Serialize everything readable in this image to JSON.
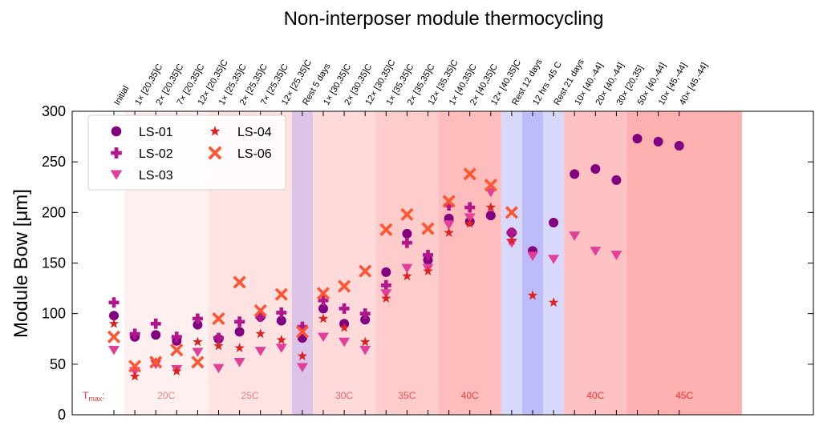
{
  "chart_data": {
    "type": "scatter",
    "title": "Non-interposer module thermocycling",
    "xlabel": "",
    "ylabel": "Module Bow [μm]",
    "ylim": [
      0,
      300
    ],
    "yticks": [
      0,
      50,
      100,
      150,
      200,
      250,
      300
    ],
    "categories": [
      "Initial",
      "1× [20,35]C",
      "2× [20,35]C",
      "7× [20,35]C",
      "12× [20,35]C",
      "1× [25,35]C",
      "2× [25,35]C",
      "7× [25,35]C",
      "12× [25,35]C",
      "Rest 5 days",
      "1× [30,35]C",
      "2× [30,35]C",
      "12× [30,35]C",
      "1× [35,35]C",
      "2× [35,35]C",
      "12× [35,35]C",
      "1× [40,35]C",
      "2× [40,35]C",
      "12× [40,35]C",
      "Rest 12 days",
      "12 hrs -45 C",
      "Rest 21 days",
      "10× [40,-44]",
      "20× [40,-44]",
      "30× [20,35]",
      "50× [40,-44]",
      "10× [45,-44]",
      "40× [45,-44]"
    ],
    "series": [
      {
        "name": "LS-01",
        "marker": "circle",
        "color": "#800080",
        "values": [
          98,
          77,
          79,
          73,
          89,
          75,
          82,
          97,
          93,
          76,
          105,
          90,
          94,
          141,
          179,
          153,
          194,
          191,
          197,
          180,
          162,
          190,
          238,
          243,
          232,
          273,
          270,
          266
        ]
      },
      {
        "name": "LS-02",
        "marker": "plus",
        "color": "#b0178c",
        "values": [
          111,
          80,
          90,
          77,
          95,
          76,
          92,
          97,
          101,
          87,
          113,
          105,
          100,
          128,
          170,
          158,
          207,
          205,
          null,
          180,
          null,
          null,
          null,
          null,
          null,
          null,
          null,
          null
        ]
      },
      {
        "name": "LS-03",
        "marker": "triangle-down",
        "color": "#e0409a",
        "values": [
          64,
          43,
          50,
          45,
          62,
          46,
          52,
          63,
          66,
          47,
          77,
          72,
          64,
          120,
          145,
          145,
          188,
          195,
          220,
          170,
          157,
          154,
          177,
          162,
          158,
          null,
          null,
          null
        ]
      },
      {
        "name": "LS-04",
        "marker": "star",
        "color": "#dd2222",
        "values": [
          90,
          38,
          52,
          43,
          72,
          68,
          66,
          80,
          74,
          58,
          95,
          86,
          72,
          115,
          137,
          142,
          180,
          189,
          205,
          172,
          118,
          111,
          null,
          null,
          null,
          null,
          null,
          null
        ]
      },
      {
        "name": "LS-06",
        "marker": "x",
        "color": "#ff5533",
        "values": [
          77,
          48,
          52,
          64,
          52,
          95,
          131,
          103,
          119,
          82,
          120,
          127,
          142,
          183,
          198,
          184,
          211,
          238,
          227,
          200,
          null,
          null,
          null,
          null,
          null,
          null,
          null,
          null
        ]
      }
    ],
    "bands": [
      {
        "label": "20C",
        "start": 0.5,
        "end": 4.5,
        "color": "#fff0f0",
        "label_color": "#f08080"
      },
      {
        "label": "25C",
        "start": 4.5,
        "end": 8.5,
        "color": "#ffe3e3",
        "label_color": "#f08080"
      },
      {
        "label": "",
        "start": 8.5,
        "end": 9.5,
        "color": "#dcc3e8",
        "label_color": "#f08080"
      },
      {
        "label": "30C",
        "start": 9.5,
        "end": 12.5,
        "color": "#ffdada",
        "label_color": "#f06060"
      },
      {
        "label": "35C",
        "start": 12.5,
        "end": 15.5,
        "color": "#ffcccc",
        "label_color": "#f05050"
      },
      {
        "label": "40C",
        "start": 15.5,
        "end": 18.5,
        "color": "#ffbcbc",
        "label_color": "#f04040"
      },
      {
        "label": "",
        "start": 18.5,
        "end": 19.5,
        "color": "#d8d8fa",
        "label_color": "#f04040"
      },
      {
        "label": "",
        "start": 19.5,
        "end": 20.5,
        "color": "#bcbcf8",
        "label_color": "#f04040"
      },
      {
        "label": "",
        "start": 20.5,
        "end": 21.5,
        "color": "#d8d8fa",
        "label_color": "#f04040"
      },
      {
        "label": "40C",
        "start": 21.5,
        "end": 24.5,
        "color": "#ffc2c2",
        "label_color": "#ee3333"
      },
      {
        "label": "45C",
        "start": 24.5,
        "end": 30.0,
        "color": "#ffb0b0",
        "label_color": "#ee3333"
      }
    ],
    "tmax_label": "T",
    "tmax_sub": "max",
    "tmax_suffix": ":",
    "legend_position": "top-left",
    "grid": false
  }
}
